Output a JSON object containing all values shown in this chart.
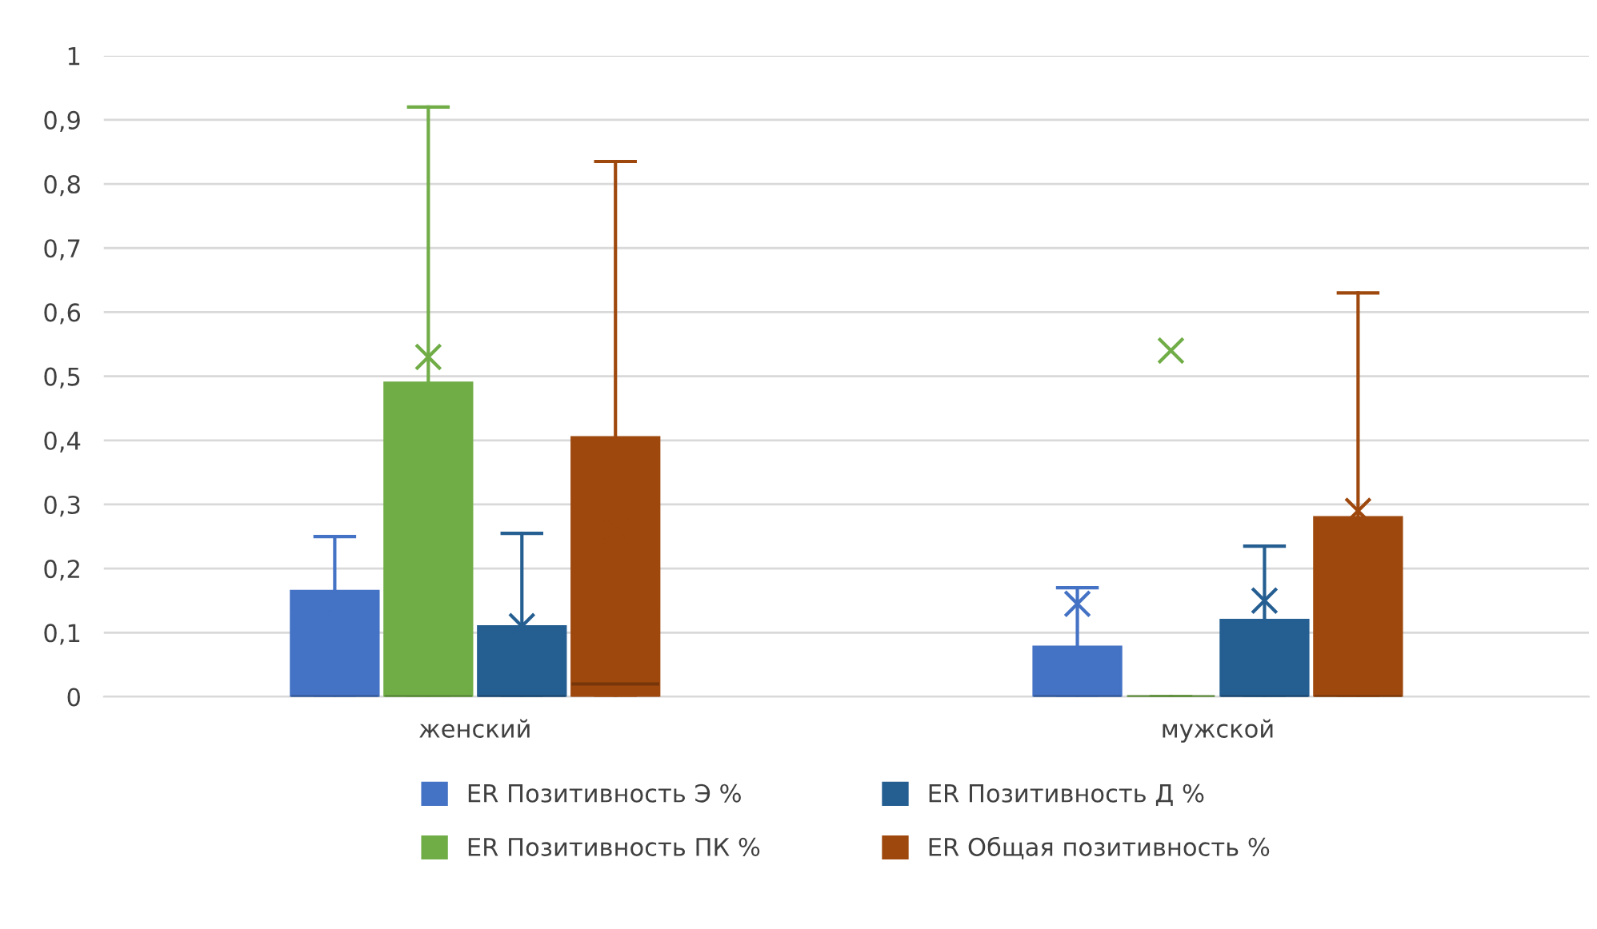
{
  "chart_data": {
    "type": "box",
    "categories": [
      "женский",
      "мужской"
    ],
    "series": [
      {
        "name": "ER Позитивность Э %",
        "color": "#4472c4",
        "boxes": [
          {
            "low": 0,
            "q1": 0,
            "median": 0,
            "q3": 0.165,
            "high": 0.25,
            "mean": 0.14
          },
          {
            "low": 0,
            "q1": 0,
            "median": 0,
            "q3": 0.078,
            "high": 0.17,
            "mean": 0.145
          }
        ]
      },
      {
        "name": "ER Позитивность ПК %",
        "color": "#70ad47",
        "boxes": [
          {
            "low": 0,
            "q1": 0,
            "median": 0,
            "q3": 0.49,
            "high": 0.92,
            "mean": 0.53
          },
          {
            "low": 0,
            "q1": 0,
            "median": 0,
            "q3": 0,
            "high": 0,
            "mean": 0.54
          }
        ]
      },
      {
        "name": "ER Позитивность Д %",
        "color": "#255e91",
        "boxes": [
          {
            "low": 0,
            "q1": 0,
            "median": 0,
            "q3": 0.11,
            "high": 0.255,
            "mean": 0.11
          },
          {
            "low": 0,
            "q1": 0,
            "median": 0,
            "q3": 0.12,
            "high": 0.235,
            "mean": 0.15
          }
        ]
      },
      {
        "name": "ER Общая позитивность %",
        "color": "#9e480e",
        "boxes": [
          {
            "low": 0,
            "q1": 0,
            "median": 0.02,
            "q3": 0.405,
            "high": 0.835,
            "mean": 0.26
          },
          {
            "low": 0,
            "q1": 0,
            "median": 0,
            "q3": 0.28,
            "high": 0.63,
            "mean": 0.29
          }
        ]
      }
    ],
    "ylim": [
      0,
      1
    ],
    "yticks": [
      0,
      {
        "value": 0.1,
        "label": "0,1"
      },
      {
        "value": 0.2,
        "label": "0,2"
      },
      {
        "value": 0.3,
        "label": "0,3"
      },
      {
        "value": 0.4,
        "label": "0,4"
      },
      {
        "value": 0.5,
        "label": "0,5"
      },
      {
        "value": 0.6,
        "label": "0,6"
      },
      {
        "value": 0.7,
        "label": "0,7"
      },
      {
        "value": 0.8,
        "label": "0,8"
      },
      {
        "value": 0.9,
        "label": "0,9"
      },
      1
    ],
    "grid": "y",
    "legend": "bottom",
    "marker": "cross"
  }
}
